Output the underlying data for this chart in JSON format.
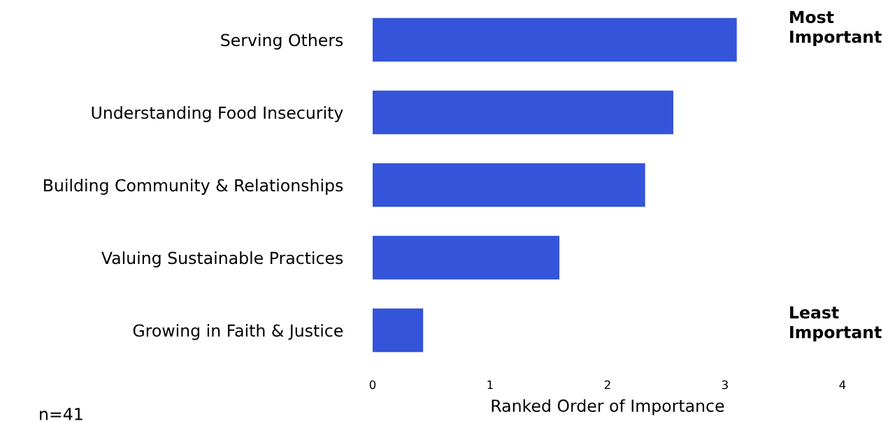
{
  "chart_data": {
    "type": "bar",
    "orientation": "horizontal",
    "xlabel": "Ranked Order of Importance",
    "categories": [
      "Serving Others",
      "Understanding Food Insecurity",
      "Building Community & Relationships",
      "Valuing Sustainable Practices",
      "Growing in Faith & Justice"
    ],
    "values": [
      3.1,
      2.56,
      2.32,
      1.59,
      0.43
    ],
    "color": "#3454d9",
    "xlim": [
      0,
      4
    ],
    "xticks": [
      0,
      1,
      2,
      3,
      4
    ],
    "grid": false,
    "annotations": [
      "Most\nImportant",
      "Least\nImportant",
      "n=41"
    ]
  }
}
